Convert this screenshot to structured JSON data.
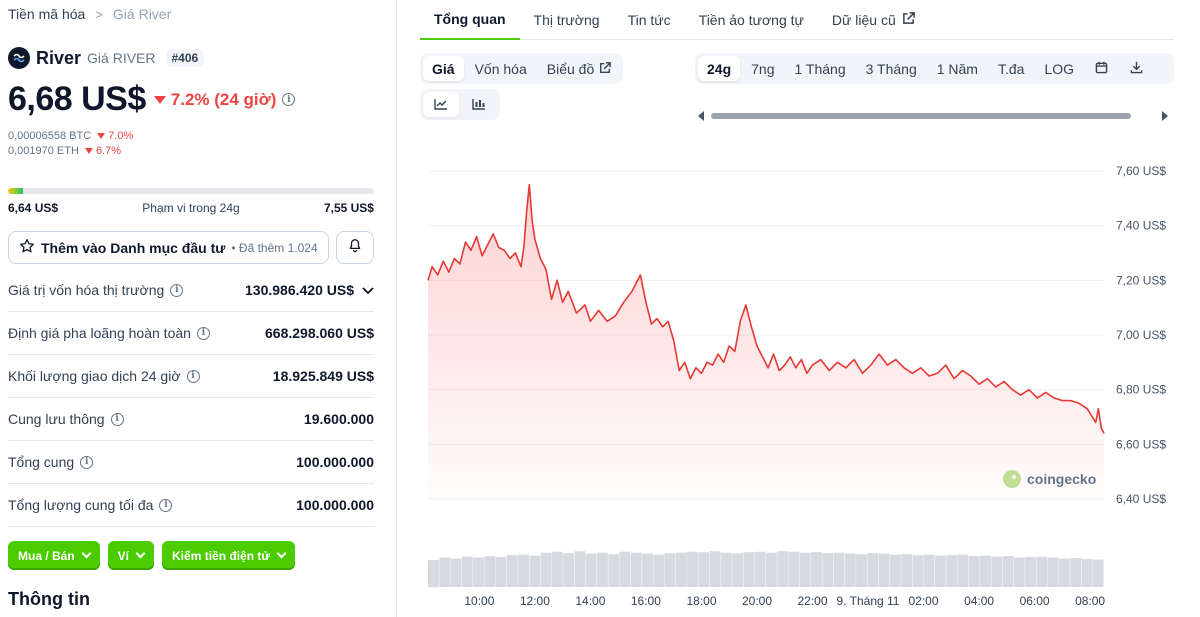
{
  "breadcrumb": {
    "root": "Tiền mã hóa",
    "current": "Giá River"
  },
  "coin": {
    "name": "River",
    "subtitle": "Giá RIVER",
    "rank": "#406"
  },
  "price": {
    "value": "6,68 US$",
    "change": "7.2% (24 giờ)"
  },
  "conversions": [
    {
      "value": "0,00006558 BTC",
      "change": "7.0%"
    },
    {
      "value": "0,001970 ETH",
      "change": "6.7%"
    }
  ],
  "range24h": {
    "low": "6,64 US$",
    "label": "Phạm vi trong 24g",
    "high": "7,55 US$",
    "fill_fraction": 0.04
  },
  "watchlist": {
    "label": "Thêm vào Danh mục đầu tư",
    "added": "• Đã thêm 1.024"
  },
  "stats": [
    {
      "label": "Giá trị vốn hóa thị trường",
      "value": "130.986.420 US$"
    },
    {
      "label": "Định giá pha loãng hoàn toàn",
      "value": "668.298.060 US$"
    },
    {
      "label": "Khối lượng giao dịch 24 giờ",
      "value": "18.925.849 US$"
    },
    {
      "label": "Cung lưu thông",
      "value": "19.600.000"
    },
    {
      "label": "Tổng cung",
      "value": "100.000.000"
    },
    {
      "label": "Tổng lượng cung tối đa",
      "value": "100.000.000"
    }
  ],
  "actions": [
    "Mua / Bán",
    "Ví",
    "Kiếm tiền điện tử"
  ],
  "info_title": "Thông tin",
  "tabs": [
    "Tổng quan",
    "Thị trường",
    "Tin tức",
    "Tiền ảo tương tự",
    "Dữ liệu cũ"
  ],
  "chart_modes": [
    "Giá",
    "Vốn hóa",
    "Biểu đồ"
  ],
  "ranges": [
    "24g",
    "7ng",
    "1 Tháng",
    "3 Tháng",
    "1 Năm",
    "T.đa",
    "LOG"
  ],
  "colors": {
    "accent": "#4bcc00",
    "negative": "#ef4444",
    "line": "#e53935"
  },
  "chart_data": {
    "type": "area",
    "title": "",
    "xlabel": "",
    "ylabel": "",
    "y_axis_side": "right",
    "ylim": [
      6.4,
      7.6
    ],
    "y_ticks": [
      7.6,
      7.4,
      7.2,
      7.0,
      6.8,
      6.6,
      6.4
    ],
    "y_tick_labels": [
      "7,60 US$",
      "7,40 US$",
      "7,20 US$",
      "7,00 US$",
      "6,80 US$",
      "6,60 US$",
      "6,40 US$"
    ],
    "x_ticks": [
      10,
      12,
      14,
      16,
      18,
      20,
      22,
      24,
      26,
      28,
      30,
      32
    ],
    "x_tick_labels": [
      "10:00",
      "12:00",
      "14:00",
      "16:00",
      "18:00",
      "20:00",
      "22:00",
      "9. Tháng 11",
      "02:00",
      "04:00",
      "06:00",
      "08:00"
    ],
    "xlim": [
      8.15,
      32.5
    ],
    "watermark": "coingecko",
    "series": [
      {
        "name": "Giá",
        "x": [
          8.15,
          8.3,
          8.5,
          8.7,
          8.9,
          9.1,
          9.3,
          9.5,
          9.7,
          9.9,
          10.1,
          10.3,
          10.5,
          10.7,
          10.9,
          11.1,
          11.3,
          11.5,
          11.6,
          11.7,
          11.8,
          11.9,
          12.0,
          12.2,
          12.4,
          12.6,
          12.8,
          13.0,
          13.2,
          13.5,
          13.8,
          14.0,
          14.3,
          14.6,
          14.9,
          15.2,
          15.5,
          15.8,
          16.0,
          16.2,
          16.4,
          16.6,
          16.8,
          17.0,
          17.2,
          17.4,
          17.6,
          17.8,
          18.0,
          18.2,
          18.4,
          18.6,
          18.8,
          19.0,
          19.2,
          19.4,
          19.6,
          19.8,
          20.0,
          20.2,
          20.4,
          20.6,
          20.8,
          21.0,
          21.2,
          21.4,
          21.6,
          21.8,
          22.0,
          22.3,
          22.6,
          22.9,
          23.2,
          23.5,
          23.8,
          24.1,
          24.4,
          24.7,
          25.0,
          25.3,
          25.6,
          25.9,
          26.2,
          26.5,
          26.8,
          27.1,
          27.4,
          27.7,
          28.0,
          28.3,
          28.6,
          28.9,
          29.2,
          29.5,
          29.8,
          30.1,
          30.4,
          30.7,
          31.0,
          31.3,
          31.6,
          31.9,
          32.2,
          32.3,
          32.4,
          32.5
        ],
        "values": [
          7.2,
          7.25,
          7.22,
          7.27,
          7.23,
          7.28,
          7.26,
          7.34,
          7.31,
          7.36,
          7.29,
          7.33,
          7.37,
          7.32,
          7.31,
          7.28,
          7.3,
          7.25,
          7.32,
          7.45,
          7.55,
          7.42,
          7.35,
          7.28,
          7.24,
          7.13,
          7.2,
          7.12,
          7.16,
          7.08,
          7.11,
          7.05,
          7.09,
          7.05,
          7.07,
          7.12,
          7.16,
          7.22,
          7.12,
          7.04,
          7.06,
          7.03,
          7.05,
          6.98,
          6.87,
          6.9,
          6.84,
          6.88,
          6.86,
          6.9,
          6.89,
          6.93,
          6.9,
          6.96,
          6.94,
          7.05,
          7.11,
          7.03,
          6.96,
          6.92,
          6.88,
          6.93,
          6.87,
          6.89,
          6.92,
          6.88,
          6.91,
          6.86,
          6.89,
          6.91,
          6.87,
          6.9,
          6.88,
          6.91,
          6.86,
          6.89,
          6.93,
          6.89,
          6.91,
          6.88,
          6.86,
          6.88,
          6.85,
          6.86,
          6.89,
          6.84,
          6.87,
          6.85,
          6.82,
          6.84,
          6.81,
          6.83,
          6.8,
          6.78,
          6.8,
          6.77,
          6.79,
          6.77,
          6.76,
          6.76,
          6.75,
          6.73,
          6.68,
          6.73,
          6.66,
          6.64
        ]
      }
    ],
    "volume_series": {
      "name": "Khối lượng",
      "values": [
        0.55,
        0.6,
        0.58,
        0.62,
        0.6,
        0.63,
        0.61,
        0.65,
        0.66,
        0.64,
        0.7,
        0.72,
        0.69,
        0.73,
        0.68,
        0.7,
        0.67,
        0.72,
        0.7,
        0.68,
        0.66,
        0.69,
        0.7,
        0.72,
        0.71,
        0.73,
        0.7,
        0.69,
        0.71,
        0.72,
        0.7,
        0.73,
        0.72,
        0.7,
        0.71,
        0.69,
        0.7,
        0.68,
        0.67,
        0.69,
        0.68,
        0.66,
        0.67,
        0.65,
        0.66,
        0.64,
        0.65,
        0.66,
        0.63,
        0.64,
        0.62,
        0.63,
        0.6,
        0.61,
        0.62,
        0.6,
        0.58,
        0.59,
        0.57,
        0.56
      ]
    }
  }
}
